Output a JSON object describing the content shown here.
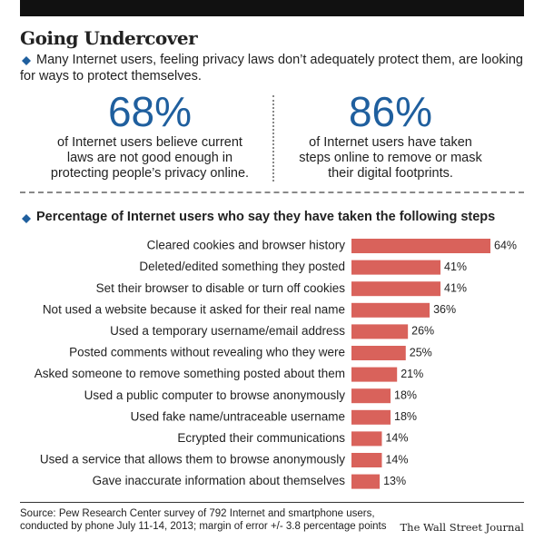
{
  "header": {
    "title": "Going Undercover",
    "subtitle": "Many Internet users, feeling privacy laws don’t adequately protect them, are looking for ways to protect themselves."
  },
  "stats": [
    {
      "number": "68%",
      "lines": [
        "of Internet users believe current",
        "laws are not good enough in",
        "protecting people’s privacy online."
      ]
    },
    {
      "number": "86%",
      "lines": [
        "of Internet users have taken",
        "steps online to remove or mask",
        "their digital footprints."
      ]
    }
  ],
  "chart_data": {
    "type": "bar",
    "orientation": "horizontal",
    "title": "Percentage of Internet users who say they have taken the following steps",
    "categories": [
      "Cleared cookies and browser history",
      "Deleted/edited something they posted",
      "Set their browser to disable or turn off cookies",
      "Not used a website because it asked for their real name",
      "Used a temporary username/email address",
      "Posted comments without revealing who they were",
      "Asked someone to remove something posted about them",
      "Used a public computer to browse anonymously",
      "Used fake name/untraceable username",
      "Ecrypted their communications",
      "Used a service that allows them to browse anonymously",
      "Gave inaccurate information about themselves"
    ],
    "values": [
      64,
      41,
      41,
      36,
      26,
      25,
      21,
      18,
      18,
      14,
      14,
      13
    ],
    "value_labels": [
      "64%",
      "41%",
      "41%",
      "36%",
      "26%",
      "25%",
      "21%",
      "18%",
      "18%",
      "14%",
      "14%",
      "13%"
    ],
    "color": "#d9625b"
  },
  "source": [
    "Source: Pew Research Center survey of 792 Internet and smartphone users,",
    "conducted by phone July 11-14, 2013; margin of error +/- 3.8 percentage points"
  ],
  "credit": "The Wall Street Journal"
}
